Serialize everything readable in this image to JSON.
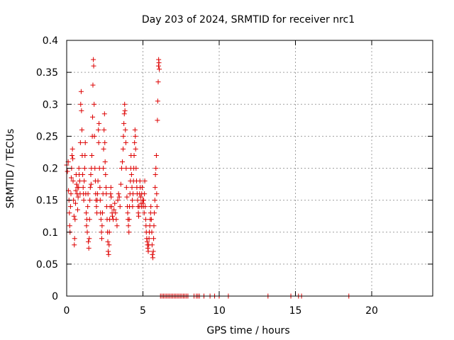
{
  "chart_data": {
    "type": "scatter",
    "title": "Day 203 of 2024, SRMTID for receiver nrc1",
    "xlabel": "GPS time / hours",
    "ylabel": "SRMTID / TECUs",
    "xlim": [
      0,
      24
    ],
    "ylim": [
      0,
      0.4
    ],
    "x_ticks": [
      0,
      5,
      10,
      15,
      20
    ],
    "x_tick_labels": [
      "0",
      "5",
      "10",
      "15",
      "20"
    ],
    "y_ticks": [
      0,
      0.05,
      0.1,
      0.15,
      0.2,
      0.25,
      0.3,
      0.35,
      0.4
    ],
    "y_tick_labels": [
      "0",
      "0.05",
      "0.1",
      "0.15",
      "0.2",
      "0.25",
      "0.3",
      "0.35",
      "0.4"
    ],
    "grid": true,
    "marker": "+",
    "colors": {
      "series": "#dd0000"
    },
    "series": [
      {
        "values": [
          [
            0.0,
            0.205
          ],
          [
            0.05,
            0.195
          ],
          [
            0.1,
            0.21
          ],
          [
            0.12,
            0.165
          ],
          [
            0.15,
            0.15
          ],
          [
            0.18,
            0.13
          ],
          [
            0.2,
            0.11
          ],
          [
            0.22,
            0.1
          ],
          [
            0.25,
            0.14
          ],
          [
            0.28,
            0.16
          ],
          [
            0.3,
            0.185
          ],
          [
            0.32,
            0.2
          ],
          [
            0.35,
            0.22
          ],
          [
            0.38,
            0.23
          ],
          [
            0.4,
            0.215
          ],
          [
            0.42,
            0.18
          ],
          [
            0.45,
            0.15
          ],
          [
            0.48,
            0.125
          ],
          [
            0.5,
            0.08
          ],
          [
            0.52,
            0.09
          ],
          [
            0.55,
            0.12
          ],
          [
            0.58,
            0.145
          ],
          [
            0.6,
            0.165
          ],
          [
            0.62,
            0.19
          ],
          [
            0.65,
            0.175
          ],
          [
            0.68,
            0.16
          ],
          [
            0.7,
            0.17
          ],
          [
            0.72,
            0.135
          ],
          [
            0.75,
            0.155
          ],
          [
            0.78,
            0.17
          ],
          [
            0.8,
            0.2
          ],
          [
            0.82,
            0.19
          ],
          [
            0.85,
            0.18
          ],
          [
            0.88,
            0.16
          ],
          [
            0.9,
            0.24
          ],
          [
            0.92,
            0.3
          ],
          [
            0.95,
            0.32
          ],
          [
            0.97,
            0.29
          ],
          [
            1.0,
            0.26
          ],
          [
            1.02,
            0.22
          ],
          [
            1.05,
            0.19
          ],
          [
            1.08,
            0.17
          ],
          [
            1.1,
            0.16
          ],
          [
            1.12,
            0.15
          ],
          [
            1.15,
            0.18
          ],
          [
            1.18,
            0.2
          ],
          [
            1.2,
            0.22
          ],
          [
            1.22,
            0.24
          ],
          [
            1.25,
            0.16
          ],
          [
            1.28,
            0.13
          ],
          [
            1.3,
            0.11
          ],
          [
            1.32,
            0.12
          ],
          [
            1.35,
            0.1
          ],
          [
            1.38,
            0.14
          ],
          [
            1.4,
            0.16
          ],
          [
            1.42,
            0.085
          ],
          [
            1.45,
            0.075
          ],
          [
            1.48,
            0.09
          ],
          [
            1.5,
            0.12
          ],
          [
            1.52,
            0.15
          ],
          [
            1.55,
            0.17
          ],
          [
            1.58,
            0.19
          ],
          [
            1.6,
            0.175
          ],
          [
            1.62,
            0.2
          ],
          [
            1.65,
            0.22
          ],
          [
            1.68,
            0.25
          ],
          [
            1.7,
            0.28
          ],
          [
            1.72,
            0.33
          ],
          [
            1.75,
            0.37
          ],
          [
            1.77,
            0.36
          ],
          [
            1.8,
            0.3
          ],
          [
            1.82,
            0.25
          ],
          [
            1.85,
            0.2
          ],
          [
            1.88,
            0.18
          ],
          [
            1.9,
            0.16
          ],
          [
            1.92,
            0.15
          ],
          [
            1.95,
            0.14
          ],
          [
            1.98,
            0.13
          ],
          [
            2.0,
            0.15
          ],
          [
            2.02,
            0.16
          ],
          [
            2.05,
            0.18
          ],
          [
            2.08,
            0.26
          ],
          [
            2.1,
            0.24
          ],
          [
            2.12,
            0.27
          ],
          [
            2.15,
            0.2
          ],
          [
            2.18,
            0.17
          ],
          [
            2.2,
            0.15
          ],
          [
            2.22,
            0.13
          ],
          [
            2.25,
            0.12
          ],
          [
            2.28,
            0.1
          ],
          [
            2.3,
            0.09
          ],
          [
            2.32,
            0.11
          ],
          [
            2.35,
            0.13
          ],
          [
            2.38,
            0.16
          ],
          [
            2.4,
            0.2
          ],
          [
            2.42,
            0.23
          ],
          [
            2.45,
            0.26
          ],
          [
            2.48,
            0.285
          ],
          [
            2.5,
            0.24
          ],
          [
            2.52,
            0.21
          ],
          [
            2.55,
            0.19
          ],
          [
            2.58,
            0.17
          ],
          [
            2.6,
            0.16
          ],
          [
            2.62,
            0.14
          ],
          [
            2.65,
            0.12
          ],
          [
            2.68,
            0.1
          ],
          [
            2.7,
            0.085
          ],
          [
            2.72,
            0.07
          ],
          [
            2.75,
            0.065
          ],
          [
            2.78,
            0.08
          ],
          [
            2.8,
            0.1
          ],
          [
            2.82,
            0.12
          ],
          [
            2.85,
            0.14
          ],
          [
            2.88,
            0.16
          ],
          [
            2.9,
            0.17
          ],
          [
            2.92,
            0.155
          ],
          [
            2.95,
            0.14
          ],
          [
            2.98,
            0.13
          ],
          [
            3.0,
            0.125
          ],
          [
            3.05,
            0.12
          ],
          [
            3.1,
            0.135
          ],
          [
            3.15,
            0.145
          ],
          [
            3.2,
            0.13
          ],
          [
            3.25,
            0.12
          ],
          [
            3.3,
            0.11
          ],
          [
            3.35,
            0.15
          ],
          [
            3.4,
            0.16
          ],
          [
            3.45,
            0.155
          ],
          [
            3.5,
            0.14
          ],
          [
            3.55,
            0.175
          ],
          [
            3.6,
            0.2
          ],
          [
            3.65,
            0.21
          ],
          [
            3.7,
            0.23
          ],
          [
            3.72,
            0.25
          ],
          [
            3.75,
            0.27
          ],
          [
            3.78,
            0.285
          ],
          [
            3.8,
            0.3
          ],
          [
            3.82,
            0.29
          ],
          [
            3.85,
            0.26
          ],
          [
            3.88,
            0.24
          ],
          [
            3.9,
            0.2
          ],
          [
            3.92,
            0.17
          ],
          [
            3.95,
            0.155
          ],
          [
            3.98,
            0.14
          ],
          [
            4.0,
            0.13
          ],
          [
            4.02,
            0.12
          ],
          [
            4.05,
            0.11
          ],
          [
            4.08,
            0.1
          ],
          [
            4.1,
            0.12
          ],
          [
            4.12,
            0.14
          ],
          [
            4.15,
            0.16
          ],
          [
            4.18,
            0.18
          ],
          [
            4.2,
            0.2
          ],
          [
            4.22,
            0.22
          ],
          [
            4.25,
            0.19
          ],
          [
            4.28,
            0.17
          ],
          [
            4.3,
            0.15
          ],
          [
            4.32,
            0.14
          ],
          [
            4.35,
            0.16
          ],
          [
            4.38,
            0.18
          ],
          [
            4.4,
            0.2
          ],
          [
            4.42,
            0.22
          ],
          [
            4.45,
            0.24
          ],
          [
            4.48,
            0.26
          ],
          [
            4.5,
            0.25
          ],
          [
            4.52,
            0.23
          ],
          [
            4.55,
            0.2
          ],
          [
            4.58,
            0.18
          ],
          [
            4.6,
            0.17
          ],
          [
            4.62,
            0.16
          ],
          [
            4.65,
            0.15
          ],
          [
            4.68,
            0.14
          ],
          [
            4.7,
            0.13
          ],
          [
            4.72,
            0.125
          ],
          [
            4.75,
            0.14
          ],
          [
            4.78,
            0.16
          ],
          [
            4.8,
            0.18
          ],
          [
            4.82,
            0.17
          ],
          [
            4.85,
            0.155
          ],
          [
            4.88,
            0.145
          ],
          [
            4.9,
            0.14
          ],
          [
            4.92,
            0.16
          ],
          [
            4.95,
            0.17
          ],
          [
            4.98,
            0.15
          ],
          [
            5.0,
            0.145
          ],
          [
            5.02,
            0.14
          ],
          [
            5.05,
            0.15
          ],
          [
            5.08,
            0.13
          ],
          [
            5.1,
            0.16
          ],
          [
            5.12,
            0.18
          ],
          [
            5.15,
            0.14
          ],
          [
            5.18,
            0.12
          ],
          [
            5.2,
            0.11
          ],
          [
            5.22,
            0.1
          ],
          [
            5.25,
            0.09
          ],
          [
            5.28,
            0.085
          ],
          [
            5.3,
            0.08
          ],
          [
            5.32,
            0.075
          ],
          [
            5.35,
            0.07
          ],
          [
            5.38,
            0.08
          ],
          [
            5.4,
            0.09
          ],
          [
            5.42,
            0.1
          ],
          [
            5.45,
            0.11
          ],
          [
            5.48,
            0.12
          ],
          [
            5.5,
            0.13
          ],
          [
            5.52,
            0.14
          ],
          [
            5.55,
            0.12
          ],
          [
            5.58,
            0.1
          ],
          [
            5.6,
            0.08
          ],
          [
            5.62,
            0.065
          ],
          [
            5.65,
            0.06
          ],
          [
            5.68,
            0.07
          ],
          [
            5.7,
            0.09
          ],
          [
            5.72,
            0.11
          ],
          [
            5.75,
            0.13
          ],
          [
            5.78,
            0.15
          ],
          [
            5.8,
            0.17
          ],
          [
            5.82,
            0.19
          ],
          [
            5.85,
            0.2
          ],
          [
            5.88,
            0.22
          ],
          [
            5.9,
            0.16
          ],
          [
            5.92,
            0.14
          ],
          [
            5.95,
            0.275
          ],
          [
            5.97,
            0.305
          ],
          [
            6.0,
            0.335
          ],
          [
            6.02,
            0.36
          ],
          [
            6.03,
            0.37
          ],
          [
            6.05,
            0.365
          ],
          [
            6.07,
            0.355
          ],
          [
            6.15,
            0.0
          ],
          [
            6.25,
            0.0
          ],
          [
            6.35,
            0.0
          ],
          [
            6.45,
            0.0
          ],
          [
            6.55,
            0.0
          ],
          [
            6.65,
            0.0
          ],
          [
            6.75,
            0.0
          ],
          [
            6.85,
            0.0
          ],
          [
            6.95,
            0.0
          ],
          [
            7.05,
            0.0
          ],
          [
            7.15,
            0.0
          ],
          [
            7.25,
            0.0
          ],
          [
            7.35,
            0.0
          ],
          [
            7.45,
            0.0
          ],
          [
            7.55,
            0.0
          ],
          [
            7.65,
            0.0
          ],
          [
            7.75,
            0.0
          ],
          [
            7.85,
            0.0
          ],
          [
            7.95,
            0.0
          ],
          [
            8.35,
            0.0
          ],
          [
            8.5,
            0.0
          ],
          [
            8.6,
            0.0
          ],
          [
            8.7,
            0.0
          ],
          [
            9.0,
            0.0
          ],
          [
            9.4,
            0.0
          ],
          [
            9.7,
            0.0
          ],
          [
            10.0,
            0.0
          ],
          [
            10.6,
            0.0
          ],
          [
            13.2,
            0.0
          ],
          [
            14.7,
            0.0
          ],
          [
            15.2,
            0.0
          ],
          [
            15.4,
            0.0
          ],
          [
            18.5,
            0.0
          ]
        ]
      }
    ]
  }
}
